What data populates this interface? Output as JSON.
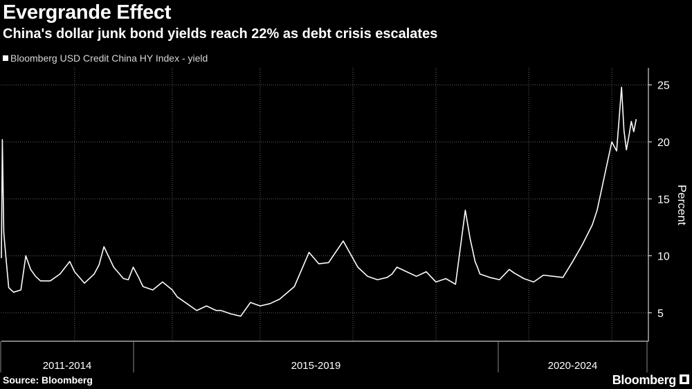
{
  "header": {
    "title": "Evergrande Effect",
    "subtitle": "China's dollar junk bond yields reach 22% as debt crisis escalates"
  },
  "footer": {
    "source": "Source: Bloomberg",
    "brand": "Bloomberg"
  },
  "colors": {
    "background": "#000000",
    "line": "#ffffff",
    "grid": "#666666"
  },
  "chart_data": {
    "type": "line",
    "ylabel": "Percent",
    "ylim": [
      2.5,
      26.5
    ],
    "yticks": [
      5,
      10,
      15,
      20,
      25
    ],
    "x_groups": [
      "2011-2014",
      "2015-2019",
      "2020-2024"
    ],
    "grid": "dotted",
    "legend_position": "top-left",
    "series": [
      {
        "name": "Bloomberg USD Credit China HY Index - yield",
        "x": [
          2010.5,
          2010.52,
          2010.55,
          2010.6,
          2010.65,
          2010.75,
          2010.9,
          2011.0,
          2011.1,
          2011.2,
          2011.3,
          2011.5,
          2011.7,
          2011.9,
          2012.0,
          2012.2,
          2012.4,
          2012.5,
          2012.6,
          2012.8,
          2013.0,
          2013.1,
          2013.2,
          2013.3,
          2013.4,
          2013.6,
          2013.8,
          2014.0,
          2014.1,
          2014.3,
          2014.5,
          2014.7,
          2014.9,
          2015.0,
          2015.2,
          2015.4,
          2015.6,
          2015.8,
          2016.0,
          2016.2,
          2016.5,
          2016.8,
          2017.0,
          2017.2,
          2017.5,
          2017.8,
          2018.0,
          2018.2,
          2018.4,
          2018.5,
          2018.6,
          2018.8,
          2019.0,
          2019.2,
          2019.4,
          2019.6,
          2019.8,
          2020.0,
          2020.1,
          2020.15,
          2020.2,
          2020.25,
          2020.3,
          2020.5,
          2020.7,
          2020.9,
          2021.0,
          2021.2,
          2021.4,
          2021.6,
          2021.8,
          2022.0,
          2022.2,
          2022.4,
          2022.6,
          2022.7,
          2022.8,
          2022.9,
          2023.0,
          2023.1,
          2023.2,
          2023.25,
          2023.3,
          2023.35,
          2023.4,
          2023.45,
          2023.5
        ],
        "y": [
          9.8,
          20.2,
          12.0,
          9.5,
          7.2,
          6.8,
          7.0,
          10.0,
          8.8,
          8.2,
          7.8,
          7.8,
          8.4,
          9.5,
          8.6,
          7.6,
          8.4,
          9.2,
          10.8,
          9.0,
          8.0,
          7.9,
          9.0,
          8.2,
          7.3,
          7.0,
          7.7,
          7.0,
          6.4,
          5.8,
          5.2,
          5.6,
          5.2,
          5.2,
          4.9,
          4.7,
          5.9,
          5.6,
          5.8,
          6.2,
          7.3,
          10.3,
          9.3,
          9.4,
          11.3,
          9.0,
          8.2,
          7.9,
          8.1,
          8.4,
          9.0,
          8.6,
          8.2,
          8.6,
          7.7,
          8.0,
          7.5,
          14.0,
          11.5,
          10.5,
          9.5,
          9.0,
          8.4,
          8.1,
          7.9,
          8.8,
          8.5,
          8.0,
          7.7,
          8.3,
          8.2,
          8.1,
          9.5,
          11.0,
          12.7,
          14.0,
          16.0,
          18.0,
          20.0,
          19.2,
          24.8,
          21.0,
          19.3,
          20.5,
          21.8,
          20.9,
          22.0
        ]
      }
    ]
  }
}
